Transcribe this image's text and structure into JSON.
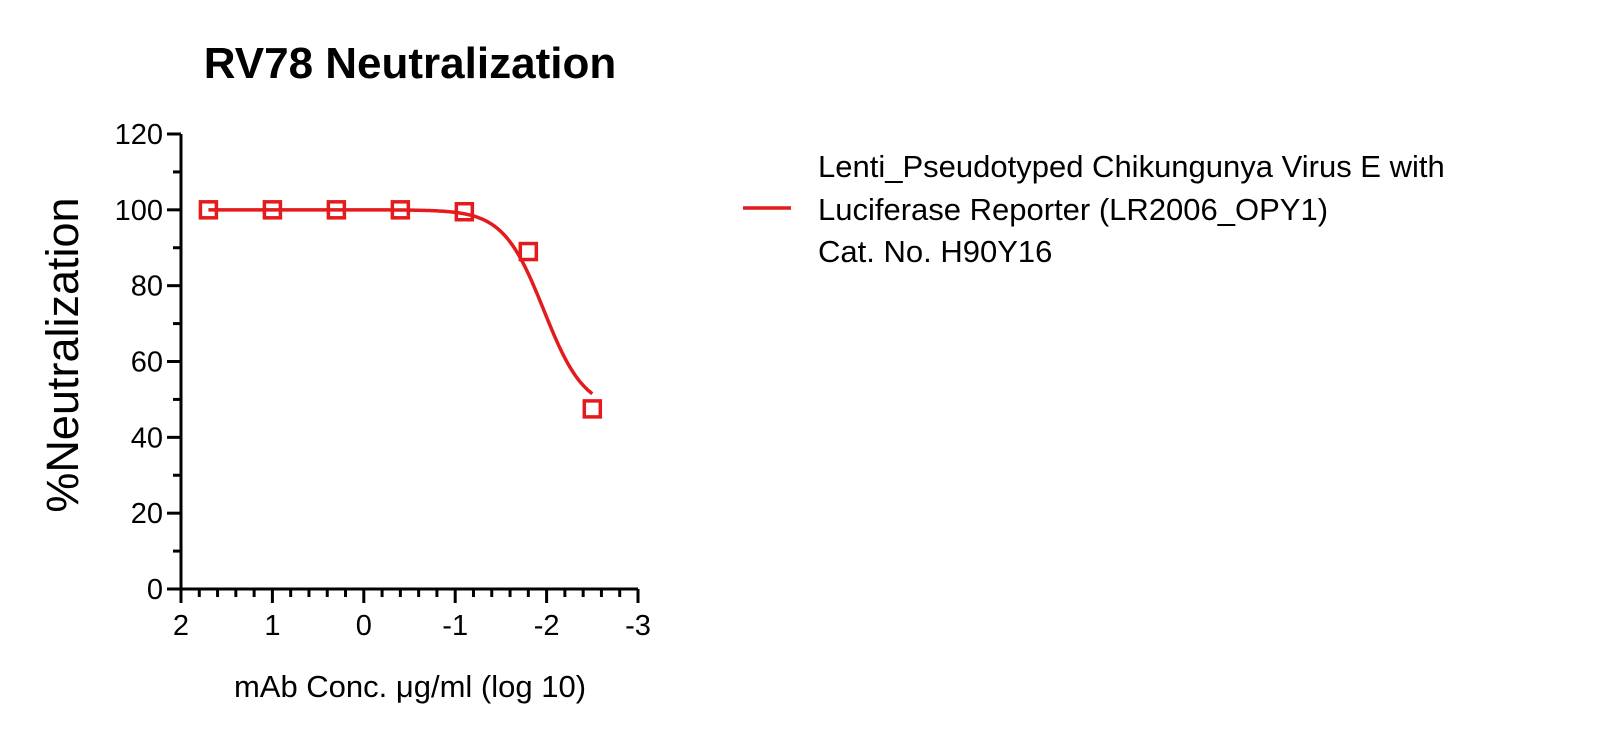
{
  "chart_data": {
    "type": "scatter",
    "title": "RV78 Neutralization",
    "xlabel": "mAb Conc. μg/ml (log 10)",
    "ylabel": "%Neutralization",
    "xlim": [
      2,
      -3
    ],
    "ylim": [
      0,
      120
    ],
    "x_ticks": [
      2,
      1,
      0,
      -1,
      -2,
      -3
    ],
    "y_ticks": [
      0,
      20,
      40,
      60,
      80,
      100,
      120
    ],
    "grid": false,
    "legend_position": "right",
    "series": [
      {
        "name": "Lenti_Pseudotyped Chikungunya Virus E with Luciferase Reporter (LR2006_OPY1) Cat. No. H90Y16",
        "legend_lines": [
          "Lenti_Pseudotyped Chikungunya Virus E with",
          "Luciferase Reporter (LR2006_OPY1)",
          "Cat. No. H90Y16"
        ],
        "color": "#e41a1c",
        "marker": "open-square",
        "fit": "sigmoidal",
        "x": [
          1.7,
          1.0,
          0.3,
          -0.4,
          -1.1,
          -1.8,
          -2.5
        ],
        "y": [
          100,
          100,
          100,
          100,
          99.5,
          89,
          47.5
        ]
      }
    ]
  }
}
